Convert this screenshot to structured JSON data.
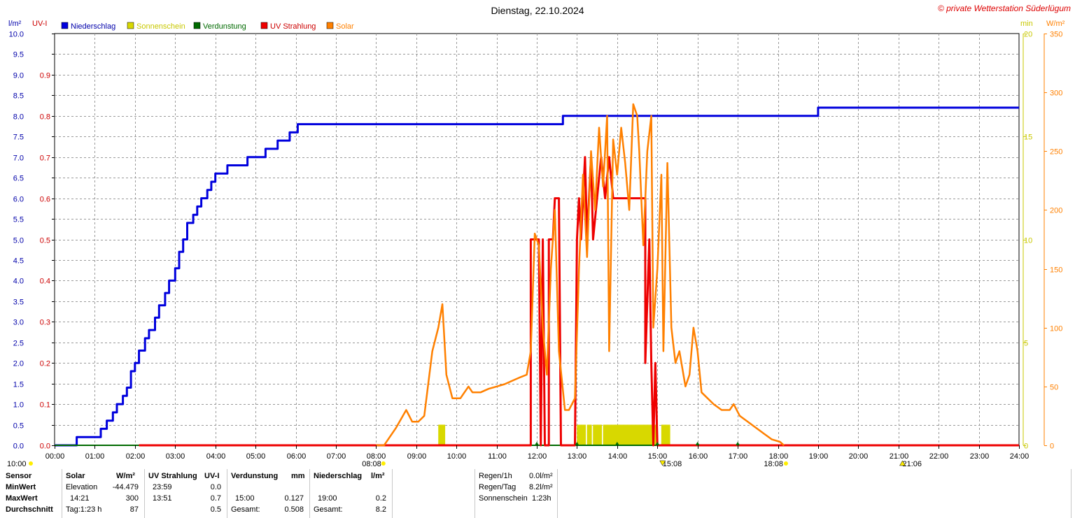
{
  "header": {
    "title": "Dienstag, 22.10.2024",
    "copyright": "© private Wetterstation Süderlügum",
    "left_units": [
      "l/m²",
      "UV-I"
    ],
    "right_units": [
      "min",
      "W/m²"
    ]
  },
  "colors": {
    "rain": "#0000dd",
    "sun": "#d8d800",
    "evap": "#006a00",
    "uv": "#ee0000",
    "solar": "#ff8000"
  },
  "chart_data": {
    "type": "line",
    "x_range": [
      "00:00",
      "24:00"
    ],
    "x_ticks": [
      "00:00",
      "01:00",
      "02:00",
      "03:00",
      "04:00",
      "05:00",
      "06:00",
      "07:00",
      "08:00",
      "09:00",
      "10:00",
      "11:00",
      "12:00",
      "13:00",
      "14:00",
      "15:00",
      "16:00",
      "17:00",
      "18:00",
      "19:00",
      "20:00",
      "21:00",
      "22:00",
      "23:00",
      "24:00"
    ],
    "axes": {
      "rain": {
        "label": "l/m²",
        "ylim": [
          0,
          10
        ],
        "ticks": [
          "0.0",
          "0.5",
          "1.0",
          "1.5",
          "2.0",
          "2.5",
          "3.0",
          "3.5",
          "4.0",
          "4.5",
          "5.0",
          "5.5",
          "6.0",
          "6.5",
          "7.0",
          "7.5",
          "8.0",
          "8.5",
          "9.0",
          "9.5",
          "10.0"
        ]
      },
      "uv": {
        "label": "UV-I",
        "ylim": [
          0,
          1
        ],
        "ticks": [
          "0.0",
          "0.1",
          "0.2",
          "0.3",
          "0.4",
          "0.5",
          "0.6",
          "0.7",
          "0.8",
          "0.9"
        ]
      },
      "sun": {
        "label": "min",
        "ylim": [
          0,
          20
        ],
        "ticks": [
          "0",
          "5",
          "10",
          "15",
          "20"
        ]
      },
      "solar": {
        "label": "W/m²",
        "ylim": [
          0,
          350
        ],
        "ticks": [
          "0",
          "50",
          "100",
          "150",
          "200",
          "250",
          "300",
          "350"
        ]
      }
    },
    "legend": [
      "Niederschlag",
      "Sonnenschein",
      "Verdunstung",
      "UV Strahlung",
      "Solar"
    ],
    "series": [
      {
        "name": "Niederschlag",
        "axis": "rain",
        "type": "step",
        "points": [
          [
            0,
            0
          ],
          [
            0.55,
            0
          ],
          [
            0.55,
            0.2
          ],
          [
            1.1,
            0.2
          ],
          [
            1.15,
            0.4
          ],
          [
            1.3,
            0.6
          ],
          [
            1.45,
            0.8
          ],
          [
            1.55,
            1.0
          ],
          [
            1.7,
            1.2
          ],
          [
            1.8,
            1.4
          ],
          [
            1.9,
            1.8
          ],
          [
            2.0,
            2.0
          ],
          [
            2.1,
            2.3
          ],
          [
            2.25,
            2.6
          ],
          [
            2.35,
            2.8
          ],
          [
            2.5,
            3.1
          ],
          [
            2.6,
            3.4
          ],
          [
            2.75,
            3.7
          ],
          [
            2.85,
            4.0
          ],
          [
            3.0,
            4.3
          ],
          [
            3.1,
            4.7
          ],
          [
            3.2,
            5.0
          ],
          [
            3.3,
            5.4
          ],
          [
            3.45,
            5.6
          ],
          [
            3.55,
            5.8
          ],
          [
            3.65,
            6.0
          ],
          [
            3.8,
            6.2
          ],
          [
            3.9,
            6.4
          ],
          [
            4.0,
            6.6
          ],
          [
            4.3,
            6.8
          ],
          [
            4.8,
            7.0
          ],
          [
            5.25,
            7.2
          ],
          [
            5.55,
            7.4
          ],
          [
            5.85,
            7.6
          ],
          [
            6.05,
            7.8
          ],
          [
            12.65,
            7.8
          ],
          [
            12.65,
            8.0
          ],
          [
            19.0,
            8.0
          ],
          [
            19.0,
            8.2
          ],
          [
            24,
            8.2
          ]
        ]
      },
      {
        "name": "Sonnenschein",
        "axis": "sun",
        "type": "bar",
        "points": [
          [
            9.6,
            1
          ],
          [
            9.65,
            1
          ],
          [
            13.05,
            1
          ],
          [
            13.15,
            1
          ],
          [
            13.3,
            1
          ],
          [
            13.45,
            1
          ],
          [
            13.55,
            1
          ],
          [
            13.7,
            1
          ],
          [
            13.8,
            1
          ],
          [
            13.9,
            1
          ],
          [
            14.0,
            1
          ],
          [
            14.1,
            1
          ],
          [
            14.2,
            1
          ],
          [
            14.3,
            1
          ],
          [
            14.4,
            1
          ],
          [
            14.5,
            1
          ],
          [
            14.6,
            1
          ],
          [
            14.7,
            1
          ],
          [
            14.8,
            1
          ],
          [
            14.9,
            1
          ],
          [
            15.15,
            1
          ],
          [
            15.25,
            1
          ]
        ]
      },
      {
        "name": "Verdunstung",
        "axis": "rain",
        "type": "line",
        "points": [
          [
            0,
            0.0
          ],
          [
            24,
            0.0
          ]
        ]
      },
      {
        "name": "UV Strahlung",
        "axis": "uv",
        "type": "line",
        "points": [
          [
            2.1,
            0
          ],
          [
            11.85,
            0
          ],
          [
            11.85,
            0.5
          ],
          [
            12.05,
            0.5
          ],
          [
            12.1,
            0
          ],
          [
            12.15,
            0.5
          ],
          [
            12.2,
            0
          ],
          [
            12.3,
            0
          ],
          [
            12.3,
            0.5
          ],
          [
            12.4,
            0.5
          ],
          [
            12.45,
            0.6
          ],
          [
            12.55,
            0.6
          ],
          [
            12.6,
            0
          ],
          [
            12.95,
            0
          ],
          [
            13.0,
            0.5
          ],
          [
            13.05,
            0.6
          ],
          [
            13.1,
            0.5
          ],
          [
            13.15,
            0.6
          ],
          [
            13.2,
            0.7
          ],
          [
            13.25,
            0.5
          ],
          [
            13.3,
            0.6
          ],
          [
            13.35,
            0.7
          ],
          [
            13.4,
            0.5
          ],
          [
            13.5,
            0.6
          ],
          [
            13.6,
            0.7
          ],
          [
            13.7,
            0.6
          ],
          [
            13.8,
            0.7
          ],
          [
            13.9,
            0.6
          ],
          [
            14.0,
            0.6
          ],
          [
            14.2,
            0.6
          ],
          [
            14.7,
            0.6
          ],
          [
            14.7,
            0.2
          ],
          [
            14.8,
            0.5
          ],
          [
            14.85,
            0.2
          ],
          [
            14.9,
            0
          ],
          [
            14.95,
            0.2
          ],
          [
            15.0,
            0
          ],
          [
            24,
            0
          ]
        ]
      },
      {
        "name": "Solar",
        "axis": "solar",
        "type": "line",
        "points": [
          [
            8.0,
            0
          ],
          [
            8.2,
            0
          ],
          [
            8.5,
            15
          ],
          [
            8.75,
            30
          ],
          [
            8.9,
            20
          ],
          [
            9.05,
            20
          ],
          [
            9.2,
            25
          ],
          [
            9.4,
            80
          ],
          [
            9.55,
            100
          ],
          [
            9.65,
            120
          ],
          [
            9.75,
            60
          ],
          [
            9.9,
            40
          ],
          [
            10.1,
            40
          ],
          [
            10.2,
            45
          ],
          [
            10.3,
            50
          ],
          [
            10.4,
            45
          ],
          [
            10.6,
            45
          ],
          [
            10.8,
            48
          ],
          [
            11.0,
            50
          ],
          [
            11.2,
            52
          ],
          [
            11.4,
            55
          ],
          [
            11.6,
            58
          ],
          [
            11.75,
            60
          ],
          [
            11.85,
            80
          ],
          [
            11.95,
            180
          ],
          [
            12.05,
            170
          ],
          [
            12.15,
            100
          ],
          [
            12.25,
            60
          ],
          [
            12.35,
            150
          ],
          [
            12.45,
            200
          ],
          [
            12.55,
            80
          ],
          [
            12.7,
            30
          ],
          [
            12.8,
            30
          ],
          [
            12.95,
            40
          ],
          [
            13.05,
            150
          ],
          [
            13.15,
            230
          ],
          [
            13.25,
            160
          ],
          [
            13.35,
            250
          ],
          [
            13.45,
            200
          ],
          [
            13.55,
            270
          ],
          [
            13.65,
            220
          ],
          [
            13.75,
            280
          ],
          [
            13.8,
            80
          ],
          [
            13.9,
            260
          ],
          [
            14.0,
            230
          ],
          [
            14.1,
            270
          ],
          [
            14.2,
            240
          ],
          [
            14.3,
            200
          ],
          [
            14.4,
            290
          ],
          [
            14.5,
            280
          ],
          [
            14.55,
            250
          ],
          [
            14.65,
            170
          ],
          [
            14.75,
            250
          ],
          [
            14.85,
            280
          ],
          [
            14.9,
            100
          ],
          [
            15.0,
            150
          ],
          [
            15.1,
            230
          ],
          [
            15.15,
            80
          ],
          [
            15.25,
            240
          ],
          [
            15.35,
            100
          ],
          [
            15.45,
            70
          ],
          [
            15.55,
            80
          ],
          [
            15.7,
            50
          ],
          [
            15.8,
            60
          ],
          [
            15.9,
            100
          ],
          [
            16.0,
            80
          ],
          [
            16.1,
            45
          ],
          [
            16.25,
            40
          ],
          [
            16.4,
            35
          ],
          [
            16.6,
            30
          ],
          [
            16.8,
            30
          ],
          [
            16.9,
            35
          ],
          [
            17.05,
            25
          ],
          [
            17.25,
            20
          ],
          [
            17.45,
            15
          ],
          [
            17.65,
            10
          ],
          [
            17.85,
            5
          ],
          [
            18.05,
            3
          ],
          [
            18.15,
            0
          ]
        ]
      }
    ],
    "markers": {
      "sunrise_label": "08:08",
      "sunset_label": "18:08",
      "moonrise_label": "15:08",
      "moonset_label": "10:00",
      "moon_other_label": "21:06"
    }
  },
  "table": {
    "headers": {
      "sensor": "Sensor",
      "solar": "Solar",
      "solar_unit": "W/m²",
      "uv": "UV Strahlung",
      "uv_unit": "UV-I",
      "evap": "Verdunstung",
      "evap_unit": "mm",
      "rain": "Niederschlag",
      "rain_unit": "l/m²"
    },
    "rows": [
      {
        "label": "MinWert",
        "solar_time": "Elevation",
        "solar_val": "-44.479",
        "uv_time": "23:59",
        "uv_val": "0.0",
        "evap_time": "",
        "evap_val": "",
        "rain_time": "",
        "rain_val": ""
      },
      {
        "label": "MaxWert",
        "solar_time": "14:21",
        "solar_val": "300",
        "uv_time": "13:51",
        "uv_val": "0.7",
        "evap_time": "15:00",
        "evap_val": "0.127",
        "rain_time": "19:00",
        "rain_val": "0.2"
      },
      {
        "label": "Durchschnitt",
        "solar_time": "Tag:1:23 h",
        "solar_val": "87",
        "uv_time": "",
        "uv_val": "0.5",
        "evap_time": "Gesamt:",
        "evap_val": "0.508",
        "rain_time": "Gesamt:",
        "rain_val": "8.2"
      }
    ],
    "summary": [
      {
        "label": "Regen/1h",
        "value": "0.0l/m²"
      },
      {
        "label": "Regen/Tag",
        "value": "8.2l/m²"
      },
      {
        "label": "Sonnenschein",
        "value": "1:23h"
      }
    ]
  }
}
